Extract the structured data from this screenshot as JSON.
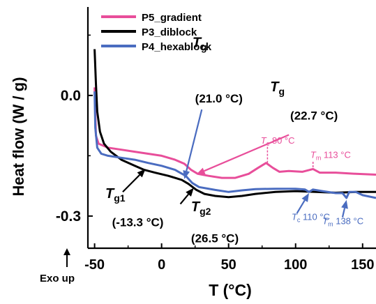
{
  "chart_data": {
    "type": "line",
    "title": "",
    "xlabel": "T (°C)",
    "ylabel": "Heat flow (W / g)",
    "xlim": [
      -55,
      160
    ],
    "ylim": [
      -0.38,
      0.22
    ],
    "x_ticks": [
      {
        "value": -50,
        "label": "-50"
      },
      {
        "value": 0,
        "label": "0"
      },
      {
        "value": 50,
        "label": "50"
      },
      {
        "value": 100,
        "label": "100"
      },
      {
        "value": 150,
        "label": "150"
      }
    ],
    "y_ticks": [
      {
        "value": 0.0,
        "label": "0.0"
      },
      {
        "value": -0.3,
        "label": "-0.3"
      }
    ],
    "exo_note": "Exo up",
    "legend": {
      "placement": "top-left"
    },
    "series": [
      {
        "name": "P5_gradient",
        "color": "#e84e9a",
        "points": [
          [
            -50,
            0.02
          ],
          [
            -49,
            -0.1
          ],
          [
            -47,
            -0.12
          ],
          [
            -40,
            -0.13
          ],
          [
            -30,
            -0.135
          ],
          [
            -20,
            -0.14
          ],
          [
            -10,
            -0.145
          ],
          [
            0,
            -0.15
          ],
          [
            10,
            -0.16
          ],
          [
            17,
            -0.17
          ],
          [
            22,
            -0.185
          ],
          [
            27,
            -0.195
          ],
          [
            35,
            -0.2
          ],
          [
            45,
            -0.205
          ],
          [
            55,
            -0.205
          ],
          [
            65,
            -0.195
          ],
          [
            72,
            -0.18
          ],
          [
            78,
            -0.168
          ],
          [
            83,
            -0.18
          ],
          [
            88,
            -0.19
          ],
          [
            95,
            -0.188
          ],
          [
            105,
            -0.19
          ],
          [
            113,
            -0.183
          ],
          [
            118,
            -0.192
          ],
          [
            130,
            -0.192
          ],
          [
            145,
            -0.195
          ],
          [
            160,
            -0.197
          ]
        ]
      },
      {
        "name": "P3_diblock",
        "color": "#000000",
        "points": [
          [
            -50,
            0.115
          ],
          [
            -49,
            0.03
          ],
          [
            -48,
            -0.04
          ],
          [
            -46,
            -0.09
          ],
          [
            -43,
            -0.12
          ],
          [
            -38,
            -0.14
          ],
          [
            -30,
            -0.16
          ],
          [
            -20,
            -0.175
          ],
          [
            -13,
            -0.185
          ],
          [
            -5,
            -0.192
          ],
          [
            5,
            -0.2
          ],
          [
            15,
            -0.21
          ],
          [
            20,
            -0.22
          ],
          [
            26,
            -0.235
          ],
          [
            32,
            -0.245
          ],
          [
            40,
            -0.25
          ],
          [
            50,
            -0.253
          ],
          [
            60,
            -0.25
          ],
          [
            70,
            -0.245
          ],
          [
            85,
            -0.24
          ],
          [
            100,
            -0.238
          ],
          [
            115,
            -0.24
          ],
          [
            130,
            -0.242
          ],
          [
            145,
            -0.24
          ],
          [
            160,
            -0.24
          ]
        ]
      },
      {
        "name": "P4_hexablock",
        "color": "#4a6cc0",
        "points": [
          [
            -50,
            0.01
          ],
          [
            -49.5,
            -0.08
          ],
          [
            -48,
            -0.13
          ],
          [
            -45,
            -0.145
          ],
          [
            -40,
            -0.15
          ],
          [
            -30,
            -0.155
          ],
          [
            -20,
            -0.16
          ],
          [
            -10,
            -0.168
          ],
          [
            0,
            -0.175
          ],
          [
            10,
            -0.185
          ],
          [
            18,
            -0.2
          ],
          [
            23,
            -0.218
          ],
          [
            28,
            -0.228
          ],
          [
            40,
            -0.235
          ],
          [
            50,
            -0.24
          ],
          [
            60,
            -0.236
          ],
          [
            70,
            -0.233
          ],
          [
            85,
            -0.232
          ],
          [
            100,
            -0.232
          ],
          [
            107,
            -0.234
          ],
          [
            110,
            -0.24
          ],
          [
            113,
            -0.234
          ],
          [
            120,
            -0.238
          ],
          [
            130,
            -0.243
          ],
          [
            135,
            -0.243
          ],
          [
            138,
            -0.255
          ],
          [
            140,
            -0.24
          ],
          [
            145,
            -0.24
          ],
          [
            150,
            -0.248
          ],
          [
            160,
            -0.255
          ]
        ]
      }
    ],
    "annotations": [
      {
        "id": "tg-p5-symbol",
        "text": "Tg",
        "italic_first": true,
        "color": "#000000",
        "x": 23,
        "y": 0.12,
        "size": 20
      },
      {
        "id": "tg-p5-value",
        "text": "(21.0 °C)",
        "color": "#000000",
        "x": 25,
        "y": -0.018,
        "size": 17
      },
      {
        "id": "tg-p3-symbol",
        "text": "Tg",
        "italic_first": true,
        "color": "#000000",
        "x": 81,
        "y": 0.01,
        "size": 20
      },
      {
        "id": "tg-p3-value",
        "text": "(22.7 °C)",
        "color": "#000000",
        "x": 96,
        "y": -0.06,
        "size": 17
      },
      {
        "id": "tg1-symbol",
        "text": "Tg1",
        "italic_first": true,
        "color": "#000000",
        "x": -42,
        "y": -0.255,
        "size": 20
      },
      {
        "id": "tg1-value",
        "text": "(-13.3 °C)",
        "color": "#000000",
        "x": -37,
        "y": -0.325,
        "size": 17
      },
      {
        "id": "tg2-symbol",
        "text": "Tg2",
        "italic_first": true,
        "color": "#000000",
        "x": 22,
        "y": -0.288,
        "size": 20
      },
      {
        "id": "tg2-value",
        "text": "(26.5 °C)",
        "color": "#000000",
        "x": 22,
        "y": -0.365,
        "size": 17
      },
      {
        "id": "tc80",
        "text": "Tc 80 °C",
        "italic_first": true,
        "color": "#e84e9a",
        "x": 74,
        "y": -0.12,
        "size": 13
      },
      {
        "id": "tm113",
        "text": "Tm 113 °C",
        "italic_first": true,
        "color": "#e84e9a",
        "x": 111,
        "y": -0.155,
        "size": 13
      },
      {
        "id": "tc110",
        "text": "Tc 110 °C",
        "italic_first": true,
        "color": "#4a6cc0",
        "x": 97,
        "y": -0.31,
        "size": 13
      },
      {
        "id": "tm138",
        "text": "Tm 138 °C",
        "italic_first": true,
        "color": "#4a6cc0",
        "x": 120,
        "y": -0.32,
        "size": 13
      }
    ],
    "arrows": [
      {
        "id": "arrow-tg-p5",
        "color": "#4a6cc0",
        "from": [
          30,
          -0.035
        ],
        "to": [
          17,
          -0.208
        ]
      },
      {
        "id": "arrow-tg-p3",
        "color": "#e84e9a",
        "from": [
          95,
          -0.098
        ],
        "to": [
          26,
          -0.196
        ]
      },
      {
        "id": "arrow-tg1",
        "color": "#000000",
        "from": [
          -29,
          -0.24
        ],
        "to": [
          -12,
          -0.183
        ]
      },
      {
        "id": "arrow-tg2",
        "color": "#000000",
        "from": [
          14,
          -0.27
        ],
        "to": [
          24,
          -0.23
        ]
      },
      {
        "id": "arrow-tc110",
        "color": "#4a6cc0",
        "from": [
          101,
          -0.293
        ],
        "to": [
          110,
          -0.243
        ]
      },
      {
        "id": "arrow-tm138",
        "color": "#4a6cc0",
        "from": [
          135,
          -0.303
        ],
        "to": [
          138,
          -0.26
        ]
      }
    ],
    "guides": [
      {
        "id": "guide-tc80",
        "color": "#e84e9a",
        "x": 79,
        "y1": -0.128,
        "y2": -0.17
      },
      {
        "id": "guide-tm113",
        "color": "#e84e9a",
        "x": 113,
        "y1": -0.165,
        "y2": -0.185
      }
    ]
  }
}
